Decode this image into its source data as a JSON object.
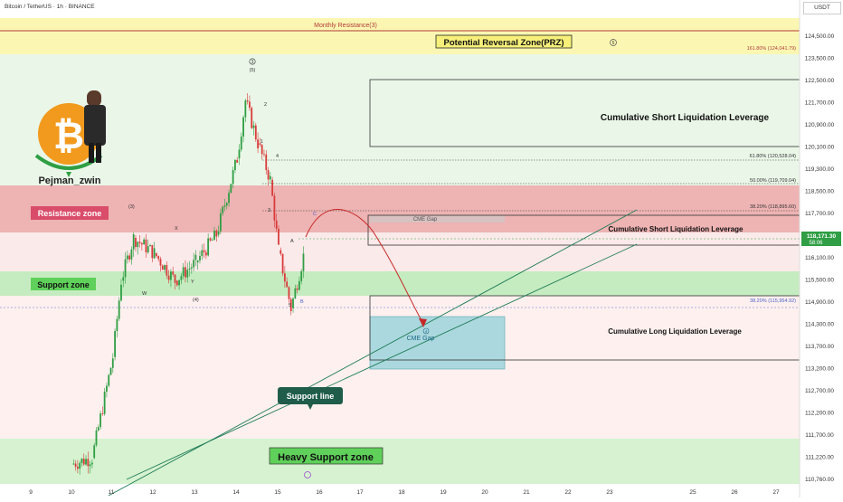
{
  "header": {
    "title": "Bitcoin / TetherUS · 1h · BINANCE",
    "currency": "USDT"
  },
  "price_axis": {
    "ticks": [
      "124,500.00",
      "123,500.00",
      "122,500.00",
      "121,700.00",
      "120,900.00",
      "120,100.00",
      "119,300.00",
      "118,500.00",
      "117,700.00",
      "116,700.00",
      "116,100.00",
      "115,500.00",
      "114,900.00",
      "114,300.00",
      "113,700.00",
      "113,200.00",
      "112,700.00",
      "112,200.00",
      "111,700.00",
      "111,220.00",
      "110,760.00"
    ],
    "current_price": "118,171.30",
    "countdown": "58:06"
  },
  "time_axis": {
    "ticks": [
      "9",
      "10",
      "11",
      "12",
      "13",
      "14",
      "15",
      "16",
      "17",
      "18",
      "19",
      "20",
      "21",
      "22",
      "23",
      "25",
      "26",
      "27"
    ]
  },
  "zones": {
    "monthly_resistance": "Monthly Resistance(3)",
    "prz": "Potential Reversal Zone(PRZ)",
    "resistance": "Resistance zone",
    "support": "Support zone",
    "heavy_support": "Heavy Support zone",
    "support_line": "Support line"
  },
  "fib_levels": [
    {
      "label": "161.80% (124,041.79)"
    },
    {
      "label": "61.80% (120,528.04)"
    },
    {
      "label": "50.00% (119,709.04)"
    },
    {
      "label": "38.20% (118,895.60)"
    },
    {
      "label": "38.20% (115,954.92)"
    }
  ],
  "liquidation_boxes": [
    {
      "label": "Cumulative Short Liquidation Leverage"
    },
    {
      "label": "Cumulative Short Liquidation Leverage"
    },
    {
      "label": "Cumulative Long Liquidation Leverage"
    }
  ],
  "cme_gaps": [
    "CME Gap",
    "CME Gap"
  ],
  "wave_labels": {
    "top3": "3",
    "top5": "(5)",
    "two": "2",
    "one": "1",
    "four": "4",
    "three": "3",
    "a": "A",
    "b": "B",
    "c": "C",
    "w": "W",
    "x": "X",
    "y": "Y",
    "paren4": "(4)",
    "paren3": "(3)",
    "five": "5",
    "circle5": "5",
    "circle4": "4"
  },
  "logo": {
    "name": "Pejman_zwin"
  },
  "colors": {
    "resistance": "#e8a0a0",
    "support": "#b6e6b0",
    "prz": "#fbf7b2",
    "cme": "#8fd0d8",
    "up": "#2f9e44",
    "down": "#d93b3b",
    "arrow": "#c62828",
    "support_line": "#1e7a55"
  },
  "chart_data": {
    "type": "candlestick",
    "title": "Bitcoin / TetherUS · 1h · BINANCE",
    "ylim": [
      110500,
      125000
    ],
    "x_ticks": [
      "9",
      "10",
      "11",
      "12",
      "13",
      "14",
      "15",
      "16",
      "17",
      "18",
      "19",
      "20",
      "21",
      "22",
      "23",
      "25",
      "26",
      "27"
    ],
    "series": [
      {
        "values": [
          {
            "x": "10",
            "y": 111000
          },
          {
            "x": "10.5",
            "y": 111200
          },
          {
            "x": "11",
            "y": 114500
          },
          {
            "x": "11.2",
            "y": 117000
          },
          {
            "x": "11.5",
            "y": 118400
          },
          {
            "x": "12",
            "y": 117900
          },
          {
            "x": "12.5",
            "y": 117000
          },
          {
            "x": "13",
            "y": 117600
          },
          {
            "x": "13.5",
            "y": 118500
          },
          {
            "x": "14",
            "y": 121000
          },
          {
            "x": "14.2",
            "y": 122900
          },
          {
            "x": "14.5",
            "y": 121500
          },
          {
            "x": "14.8",
            "y": 120300
          },
          {
            "x": "15",
            "y": 118000
          },
          {
            "x": "15.3",
            "y": 116100
          },
          {
            "x": "15.6",
            "y": 117800
          }
        ]
      }
    ]
  }
}
